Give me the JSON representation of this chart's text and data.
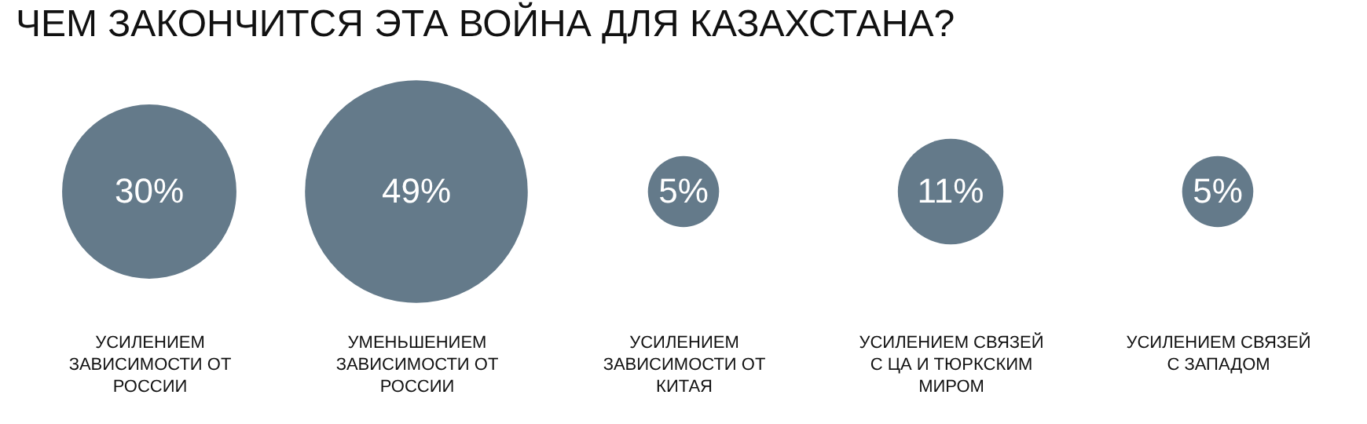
{
  "chart_data": {
    "type": "other",
    "title": "ЧЕМ ЗАКОНЧИТСЯ ЭТА ВОЙНА ДЛЯ КАЗАХСТАНА?",
    "categories": [
      "УСИЛЕНИЕМ ЗАВИСИМОСТИ ОТ РОССИИ",
      "УМЕНЬШЕНИЕМ ЗАВИСИМОСТИ ОТ РОССИИ",
      "УСИЛЕНИЕМ ЗАВИСИМОСТИ ОТ КИТАЯ",
      "УСИЛЕНИЕМ СВЯЗЕЙ С ЦА И ТЮРКСКИМ МИРОМ",
      "УСИЛЕНИЕМ СВЯЗЕЙ С ЗАПАДОМ"
    ],
    "values": [
      30,
      49,
      5,
      11,
      5
    ],
    "value_labels": [
      "30%",
      "49%",
      "5%",
      "11%",
      "5%"
    ],
    "color": "#647a8a"
  }
}
